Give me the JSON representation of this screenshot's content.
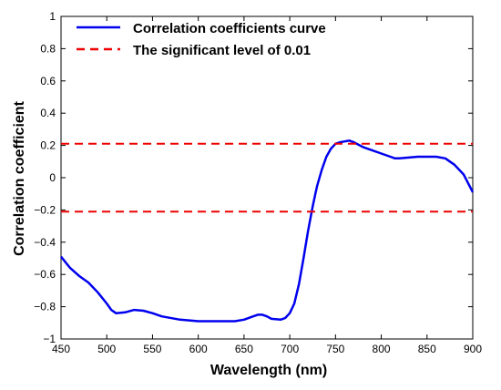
{
  "chart_data": {
    "type": "line",
    "xlabel": "Wavelength (nm)",
    "ylabel": "Correlation coefficient",
    "xlim": [
      450,
      900
    ],
    "ylim": [
      -1,
      1
    ],
    "x_ticks": [
      450,
      500,
      550,
      600,
      650,
      700,
      750,
      800,
      850,
      900
    ],
    "y_ticks": [
      -1,
      -0.8,
      -0.6,
      -0.4,
      -0.2,
      0,
      0.2,
      0.4,
      0.6,
      0.8,
      1
    ],
    "y_tick_labels": [
      "−1",
      "−0.8",
      "−0.6",
      "−0.4",
      "−0.2",
      "0",
      "0.2",
      "0.4",
      "0.6",
      "0.8",
      "1"
    ],
    "grid": false,
    "legend_position": "top-left",
    "series": [
      {
        "name": "Correlation coefficients curve",
        "color": "#0000ee",
        "style": "solid",
        "x": [
          450,
          460,
          470,
          480,
          490,
          500,
          505,
          510,
          520,
          530,
          540,
          550,
          560,
          580,
          600,
          620,
          640,
          650,
          660,
          665,
          670,
          675,
          680,
          690,
          695,
          700,
          705,
          710,
          715,
          720,
          725,
          728,
          730,
          735,
          740,
          745,
          750,
          755,
          760,
          765,
          770,
          780,
          790,
          800,
          810,
          815,
          820,
          830,
          840,
          850,
          860,
          870,
          880,
          890,
          900
        ],
        "y": [
          -0.49,
          -0.56,
          -0.61,
          -0.65,
          -0.71,
          -0.78,
          -0.82,
          -0.84,
          -0.835,
          -0.82,
          -0.825,
          -0.84,
          -0.86,
          -0.88,
          -0.89,
          -0.89,
          -0.89,
          -0.88,
          -0.86,
          -0.85,
          -0.85,
          -0.86,
          -0.875,
          -0.88,
          -0.87,
          -0.84,
          -0.78,
          -0.66,
          -0.5,
          -0.33,
          -0.18,
          -0.1,
          -0.05,
          0.05,
          0.13,
          0.18,
          0.21,
          0.22,
          0.225,
          0.23,
          0.22,
          0.19,
          0.17,
          0.15,
          0.13,
          0.12,
          0.12,
          0.125,
          0.13,
          0.13,
          0.13,
          0.12,
          0.08,
          0.02,
          -0.09
        ]
      },
      {
        "name": "The significant level of 0.01",
        "color": "#ee0000",
        "style": "dashed",
        "x": [
          450,
          900
        ],
        "y": [
          0.21,
          0.21
        ]
      },
      {
        "name": "",
        "color": "#ee0000",
        "style": "dashed",
        "x": [
          450,
          900
        ],
        "y": [
          -0.21,
          -0.21
        ]
      }
    ]
  }
}
